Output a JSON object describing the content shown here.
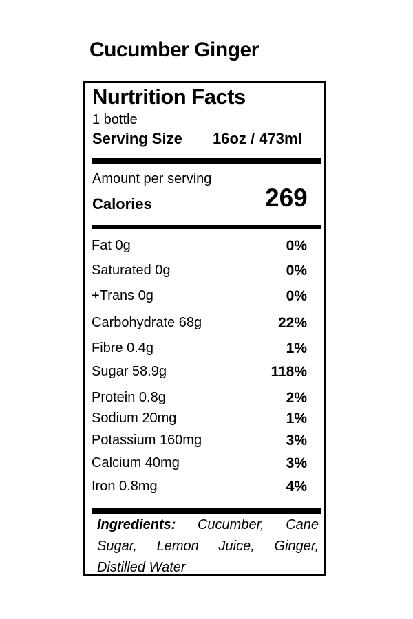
{
  "product_name": "Cucumber Ginger",
  "label": {
    "heading": "Nurtrition Facts",
    "servings": "1 bottle",
    "serving_size_label": "Serving Size",
    "serving_size_value": "16oz / 473ml",
    "amount_per_serving": "Amount per serving",
    "calories_label": "Calories",
    "calories_value": "269",
    "nutrients": [
      {
        "name": "Fat 0g",
        "dv": "0%"
      },
      {
        "name": "Saturated 0g",
        "dv": "0%"
      },
      {
        "name": "+Trans 0g",
        "dv": "0%"
      },
      {
        "name": "Carbohydrate 68g",
        "dv": "22%"
      },
      {
        "name": "Fibre 0.4g",
        "dv": "1%"
      },
      {
        "name": "Sugar 58.9g",
        "dv": "118%"
      },
      {
        "name": "Protein 0.8g",
        "dv": "2%"
      },
      {
        "name": "Sodium 20mg",
        "dv": "1%"
      },
      {
        "name": "Potassium 160mg",
        "dv": "3%"
      },
      {
        "name": "Calcium 40mg",
        "dv": "3%"
      },
      {
        "name": "Iron 0.8mg",
        "dv": "4%"
      }
    ],
    "ingredients_label": "Ingredients:",
    "ingredients_text": "Cucumber, Cane Sugar, Lemon Juice, Ginger, Distilled Water"
  }
}
